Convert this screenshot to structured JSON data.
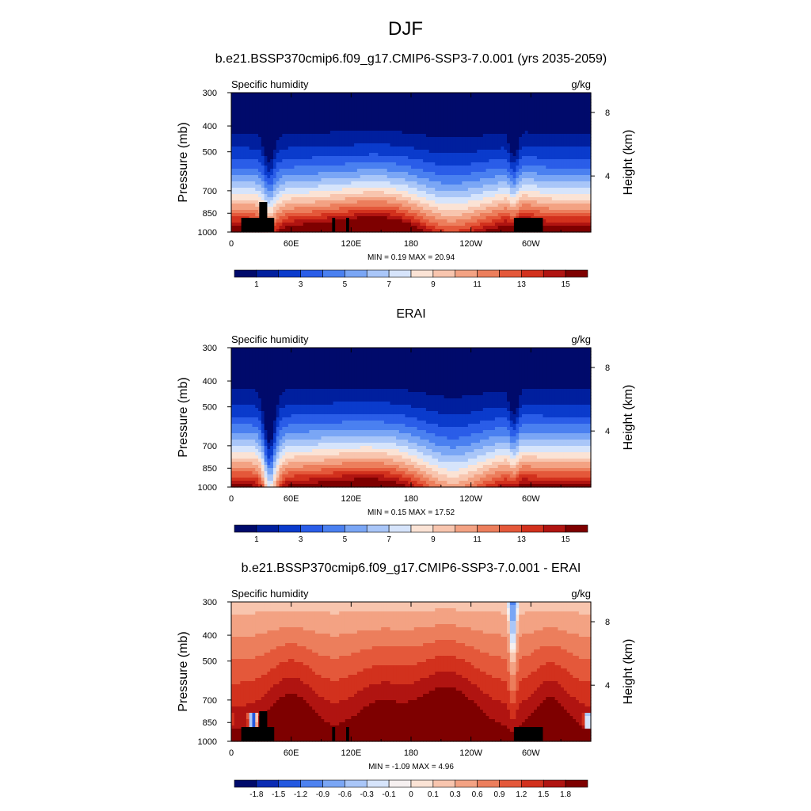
{
  "main_title": "DJF",
  "colors": {
    "absolute_levels": [
      "#000a6b",
      "#001f9e",
      "#0a3bcc",
      "#2a5de8",
      "#4a80f0",
      "#7aa6f5",
      "#a9c6f8",
      "#d6e4fb",
      "#fbe3d5",
      "#f8c5ae",
      "#f3a283",
      "#ec7e5c",
      "#e4583a",
      "#d2311d",
      "#b01411",
      "#7e0000"
    ],
    "difference_levels": [
      "#000a6b",
      "#0a2bb3",
      "#2358e0",
      "#4d82f0",
      "#7aa6f5",
      "#a9c6f8",
      "#d6e4fb",
      "#f6f0f0",
      "#fbe3d5",
      "#f8c5ae",
      "#f3a283",
      "#ec7e5c",
      "#e4583a",
      "#d2311d",
      "#b01411",
      "#7e0000"
    ],
    "land_mask": "#000000"
  },
  "chart_data": [
    {
      "type": "heatmap",
      "title": "b.e21.BSSP370cmip6.f09_g17.CMIP6-SSP3-7.0.001 (yrs 2035-2059)",
      "left_string": "Specific humidity",
      "right_string": "g/kg",
      "xlabel": "",
      "ylabel": "Pressure (mb)",
      "ylabel_right": "Height (km)",
      "x_ticks": [
        "0",
        "60E",
        "120E",
        "180",
        "120W",
        "60W"
      ],
      "y_ticks": [
        "300",
        "400",
        "500",
        "700",
        "850",
        "1000"
      ],
      "y_ticks_right": [
        "8",
        "4"
      ],
      "min_max": "MIN =   0.19  MAX =  20.94",
      "colorbar_labels": [
        "1",
        "3",
        "5",
        "7",
        "9",
        "11",
        "13",
        "15"
      ]
    },
    {
      "type": "heatmap",
      "title": "ERAI",
      "left_string": "Specific humidity",
      "right_string": "g/kg",
      "xlabel": "",
      "ylabel": "Pressure (mb)",
      "ylabel_right": "Height (km)",
      "x_ticks": [
        "0",
        "60E",
        "120E",
        "180",
        "120W",
        "60W"
      ],
      "y_ticks": [
        "300",
        "400",
        "500",
        "700",
        "850",
        "1000"
      ],
      "y_ticks_right": [
        "8",
        "4"
      ],
      "min_max": "MIN =   0.15  MAX =  17.52",
      "colorbar_labels": [
        "1",
        "3",
        "5",
        "7",
        "9",
        "11",
        "13",
        "15"
      ]
    },
    {
      "type": "heatmap",
      "title": "b.e21.BSSP370cmip6.f09_g17.CMIP6-SSP3-7.0.001 - ERAI",
      "left_string": "Specific humidity",
      "right_string": "g/kg",
      "xlabel": "",
      "ylabel": "Pressure (mb)",
      "ylabel_right": "Height (km)",
      "x_ticks": [
        "0",
        "60E",
        "120E",
        "180",
        "120W",
        "60W"
      ],
      "y_ticks": [
        "300",
        "400",
        "500",
        "700",
        "850",
        "1000"
      ],
      "y_ticks_right": [
        "8",
        "4"
      ],
      "min_max": "MIN =  -1.09  MAX =   4.96",
      "colorbar_labels": [
        "-1.8",
        "-1.5",
        "-1.2",
        "-0.9",
        "-0.6",
        "-0.3",
        "-0.1",
        "0",
        "0.1",
        "0.3",
        "0.6",
        "0.9",
        "1.2",
        "1.5",
        "1.8"
      ]
    }
  ]
}
